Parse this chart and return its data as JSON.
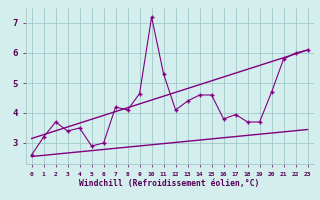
{
  "xlabel": "Windchill (Refroidissement éolien,°C)",
  "x": [
    0,
    1,
    2,
    3,
    4,
    5,
    6,
    7,
    8,
    9,
    10,
    11,
    12,
    13,
    14,
    15,
    16,
    17,
    18,
    19,
    20,
    21,
    22,
    23
  ],
  "main_y": [
    2.6,
    3.2,
    3.7,
    3.4,
    3.5,
    2.9,
    3.0,
    4.2,
    4.1,
    4.65,
    7.2,
    5.3,
    4.1,
    4.4,
    4.6,
    4.6,
    3.8,
    3.95,
    3.7,
    3.7,
    4.7,
    5.8,
    6.0,
    6.1
  ],
  "lower_trend_x": [
    0,
    23
  ],
  "lower_trend_y": [
    2.55,
    3.45
  ],
  "upper_trend_x": [
    0,
    23
  ],
  "upper_trend_y": [
    3.15,
    6.1
  ],
  "line_color": "#800080",
  "bg_color": "#d4eeee",
  "grid_color": "#a0c8c8",
  "xlim": [
    -0.5,
    23.5
  ],
  "ylim": [
    2.3,
    7.5
  ],
  "yticks": [
    3,
    4,
    5,
    6,
    7
  ],
  "xticks": [
    0,
    1,
    2,
    3,
    4,
    5,
    6,
    7,
    8,
    9,
    10,
    11,
    12,
    13,
    14,
    15,
    16,
    17,
    18,
    19,
    20,
    21,
    22,
    23
  ]
}
